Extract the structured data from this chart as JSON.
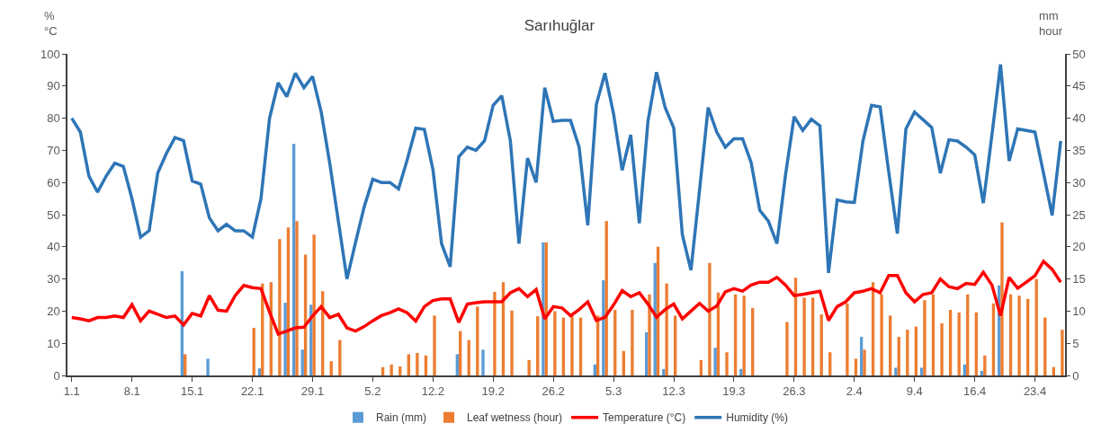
{
  "chart_data": {
    "type": "bar",
    "title": "Sarıhuğlar",
    "ylabel": "%\n°C",
    "y2label": "mm\nhour",
    "categories": [
      "1.1",
      null,
      null,
      null,
      null,
      null,
      null,
      "8.1",
      null,
      null,
      null,
      null,
      null,
      null,
      "15.1",
      null,
      null,
      null,
      null,
      null,
      null,
      "22.1",
      null,
      null,
      null,
      null,
      null,
      null,
      "29.1",
      null,
      null,
      null,
      null,
      null,
      null,
      "5.2",
      null,
      null,
      null,
      null,
      null,
      null,
      "12.2",
      null,
      null,
      null,
      null,
      null,
      null,
      "19.2",
      null,
      null,
      null,
      null,
      null,
      null,
      "26.2",
      null,
      null,
      null,
      null,
      null,
      null,
      "5.3",
      null,
      null,
      null,
      null,
      null,
      null,
      "12.3",
      null,
      null,
      null,
      null,
      null,
      null,
      "19.3",
      null,
      null,
      null,
      null,
      null,
      null,
      "26.3",
      null,
      null,
      null,
      null,
      null,
      null,
      "2.4",
      null,
      null,
      null,
      null,
      null,
      null,
      "9.4",
      null,
      null,
      null,
      null,
      null,
      null,
      "16.4",
      null,
      null,
      null,
      null,
      null,
      null,
      "23.4",
      null,
      null,
      null
    ],
    "series": [
      {
        "name": "Rain (mm)",
        "axis": "y2",
        "color": "#5b9bd5",
        "values": [
          null,
          null,
          null,
          null,
          null,
          null,
          null,
          null,
          null,
          null,
          null,
          null,
          null,
          16.2,
          null,
          null,
          2.6,
          null,
          null,
          null,
          null,
          null,
          1.1,
          null,
          null,
          11.3,
          36,
          4,
          11,
          null,
          null,
          null,
          null,
          null,
          null,
          null,
          null,
          null,
          null,
          null,
          null,
          null,
          null,
          null,
          null,
          3.3,
          null,
          null,
          4,
          null,
          null,
          null,
          null,
          null,
          null,
          20.7,
          null,
          null,
          null,
          null,
          null,
          1.7,
          14.8,
          null,
          null,
          null,
          null,
          6.7,
          17.5,
          1,
          null,
          null,
          null,
          null,
          null,
          4.3,
          null,
          null,
          1,
          null,
          null,
          null,
          null,
          null,
          null,
          null,
          null,
          null,
          null,
          null,
          null,
          null,
          6,
          null,
          null,
          null,
          1.2,
          null,
          null,
          1.2,
          null,
          null,
          null,
          null,
          1.7,
          null,
          0.7,
          null,
          14,
          null,
          null,
          null,
          null,
          null,
          null,
          null
        ]
      },
      {
        "name": "Leaf wetness (hour)",
        "axis": "y2",
        "color": "#ed7d31",
        "values": [
          null,
          null,
          null,
          null,
          null,
          null,
          null,
          null,
          null,
          null,
          null,
          null,
          null,
          3.3,
          null,
          null,
          null,
          null,
          null,
          null,
          null,
          7.4,
          14.3,
          14.5,
          21.2,
          23,
          24,
          18.8,
          21.9,
          13.1,
          2.2,
          5.5,
          null,
          null,
          null,
          null,
          1.3,
          1.7,
          1.4,
          3.3,
          3.5,
          3.1,
          9.3,
          null,
          null,
          6.9,
          5.5,
          10.7,
          null,
          13,
          14.5,
          10.1,
          null,
          2.4,
          9.2,
          20.7,
          10,
          9,
          9.3,
          9,
          null,
          9.3,
          24,
          10.2,
          3.8,
          10.2,
          null,
          12.6,
          20,
          14.3,
          9.3,
          null,
          null,
          2.4,
          17.5,
          12.9,
          3.6,
          12.6,
          12.4,
          10.5,
          null,
          null,
          null,
          8.3,
          15.2,
          12.1,
          12.1,
          9.5,
          3.6,
          null,
          11.2,
          2.6,
          4,
          14.5,
          12.6,
          9.3,
          6,
          7.1,
          7.6,
          11.7,
          12.6,
          8.1,
          10.2,
          9.8,
          12.6,
          9.8,
          3.1,
          11.2,
          23.8,
          12.6,
          12.4,
          11.9,
          15,
          9,
          1.3,
          7.1
        ]
      },
      {
        "name": "Temperature (°C)",
        "type": "line",
        "axis": "y",
        "color": "#ff0000",
        "values": [
          18,
          17.6,
          17,
          18,
          18,
          18.5,
          18,
          22,
          17,
          20,
          19,
          18,
          18.5,
          15.7,
          19.3,
          18.5,
          24.8,
          20.3,
          20,
          24.8,
          28,
          27.3,
          27,
          19.7,
          12.9,
          13.8,
          14.8,
          15,
          18.5,
          21.4,
          18,
          19,
          14.8,
          13.8,
          15.2,
          17,
          18.6,
          19.5,
          20.7,
          19.5,
          16.9,
          21.4,
          23.3,
          23.8,
          23.8,
          16.5,
          22.2,
          22.6,
          22.9,
          22.9,
          22.9,
          25.7,
          27,
          24.5,
          26.7,
          17.6,
          21.4,
          21,
          18.6,
          20.5,
          22.9,
          17.1,
          18.1,
          21.9,
          26.4,
          24.5,
          25.7,
          22.2,
          18.1,
          20.5,
          22.2,
          17.6,
          20,
          22.4,
          20,
          21.6,
          26,
          27,
          26.2,
          28.1,
          29,
          29,
          30.5,
          28.1,
          24.8,
          25.2,
          25.7,
          26.2,
          17.1,
          21.4,
          22.9,
          25.7,
          26.2,
          27,
          25.7,
          31.1,
          31.1,
          25.7,
          22.9,
          25.2,
          25.7,
          30,
          27.6,
          27,
          28.6,
          28.3,
          32.1,
          28.1,
          18.6,
          30.5,
          27.1,
          29,
          31,
          35.5,
          33,
          29
        ]
      },
      {
        "name": "Humidity (%)",
        "type": "line",
        "axis": "y",
        "color": "#2e75b6",
        "values": [
          80,
          75.7,
          62,
          57,
          62,
          66,
          65,
          55,
          43,
          45,
          63,
          69,
          74,
          73,
          60.5,
          59.5,
          49,
          45,
          47,
          45,
          45,
          43,
          55,
          80,
          91,
          86.7,
          94,
          89.5,
          93,
          82,
          66,
          48,
          30,
          41.4,
          52.4,
          61,
          60,
          60,
          58,
          67,
          76.9,
          76.5,
          64,
          41,
          33.8,
          68,
          71,
          70,
          73,
          84,
          87,
          73,
          41,
          67.6,
          60,
          89.5,
          79,
          79.3,
          79.3,
          71,
          46.7,
          84.3,
          94,
          81.4,
          63.8,
          74.8,
          47.3,
          79,
          94.3,
          83.3,
          77,
          43.8,
          32.7,
          57.6,
          83.3,
          75.7,
          71,
          73.6,
          73.6,
          66.2,
          51.4,
          48,
          41,
          62.4,
          80.5,
          76.2,
          79.7,
          77.6,
          31.9,
          54.6,
          54,
          53.8,
          72.9,
          84,
          83.5,
          63.3,
          44.1,
          76.7,
          81.9,
          79.5,
          77.1,
          62.9,
          73.3,
          72.9,
          71,
          68.6,
          53.6,
          74.8,
          96.7,
          66.7,
          76.7,
          76.2,
          75.7,
          62.9,
          49.8,
          72.9
        ]
      }
    ],
    "ylim": [
      0,
      100
    ],
    "yticks": [
      0,
      10,
      20,
      30,
      40,
      50,
      60,
      70,
      80,
      90,
      100
    ],
    "y2lim": [
      0,
      50
    ],
    "y2ticks": [
      0,
      5,
      10,
      15,
      20,
      25,
      30,
      35,
      40,
      45,
      50
    ],
    "grid": false,
    "legend": "bottom"
  }
}
